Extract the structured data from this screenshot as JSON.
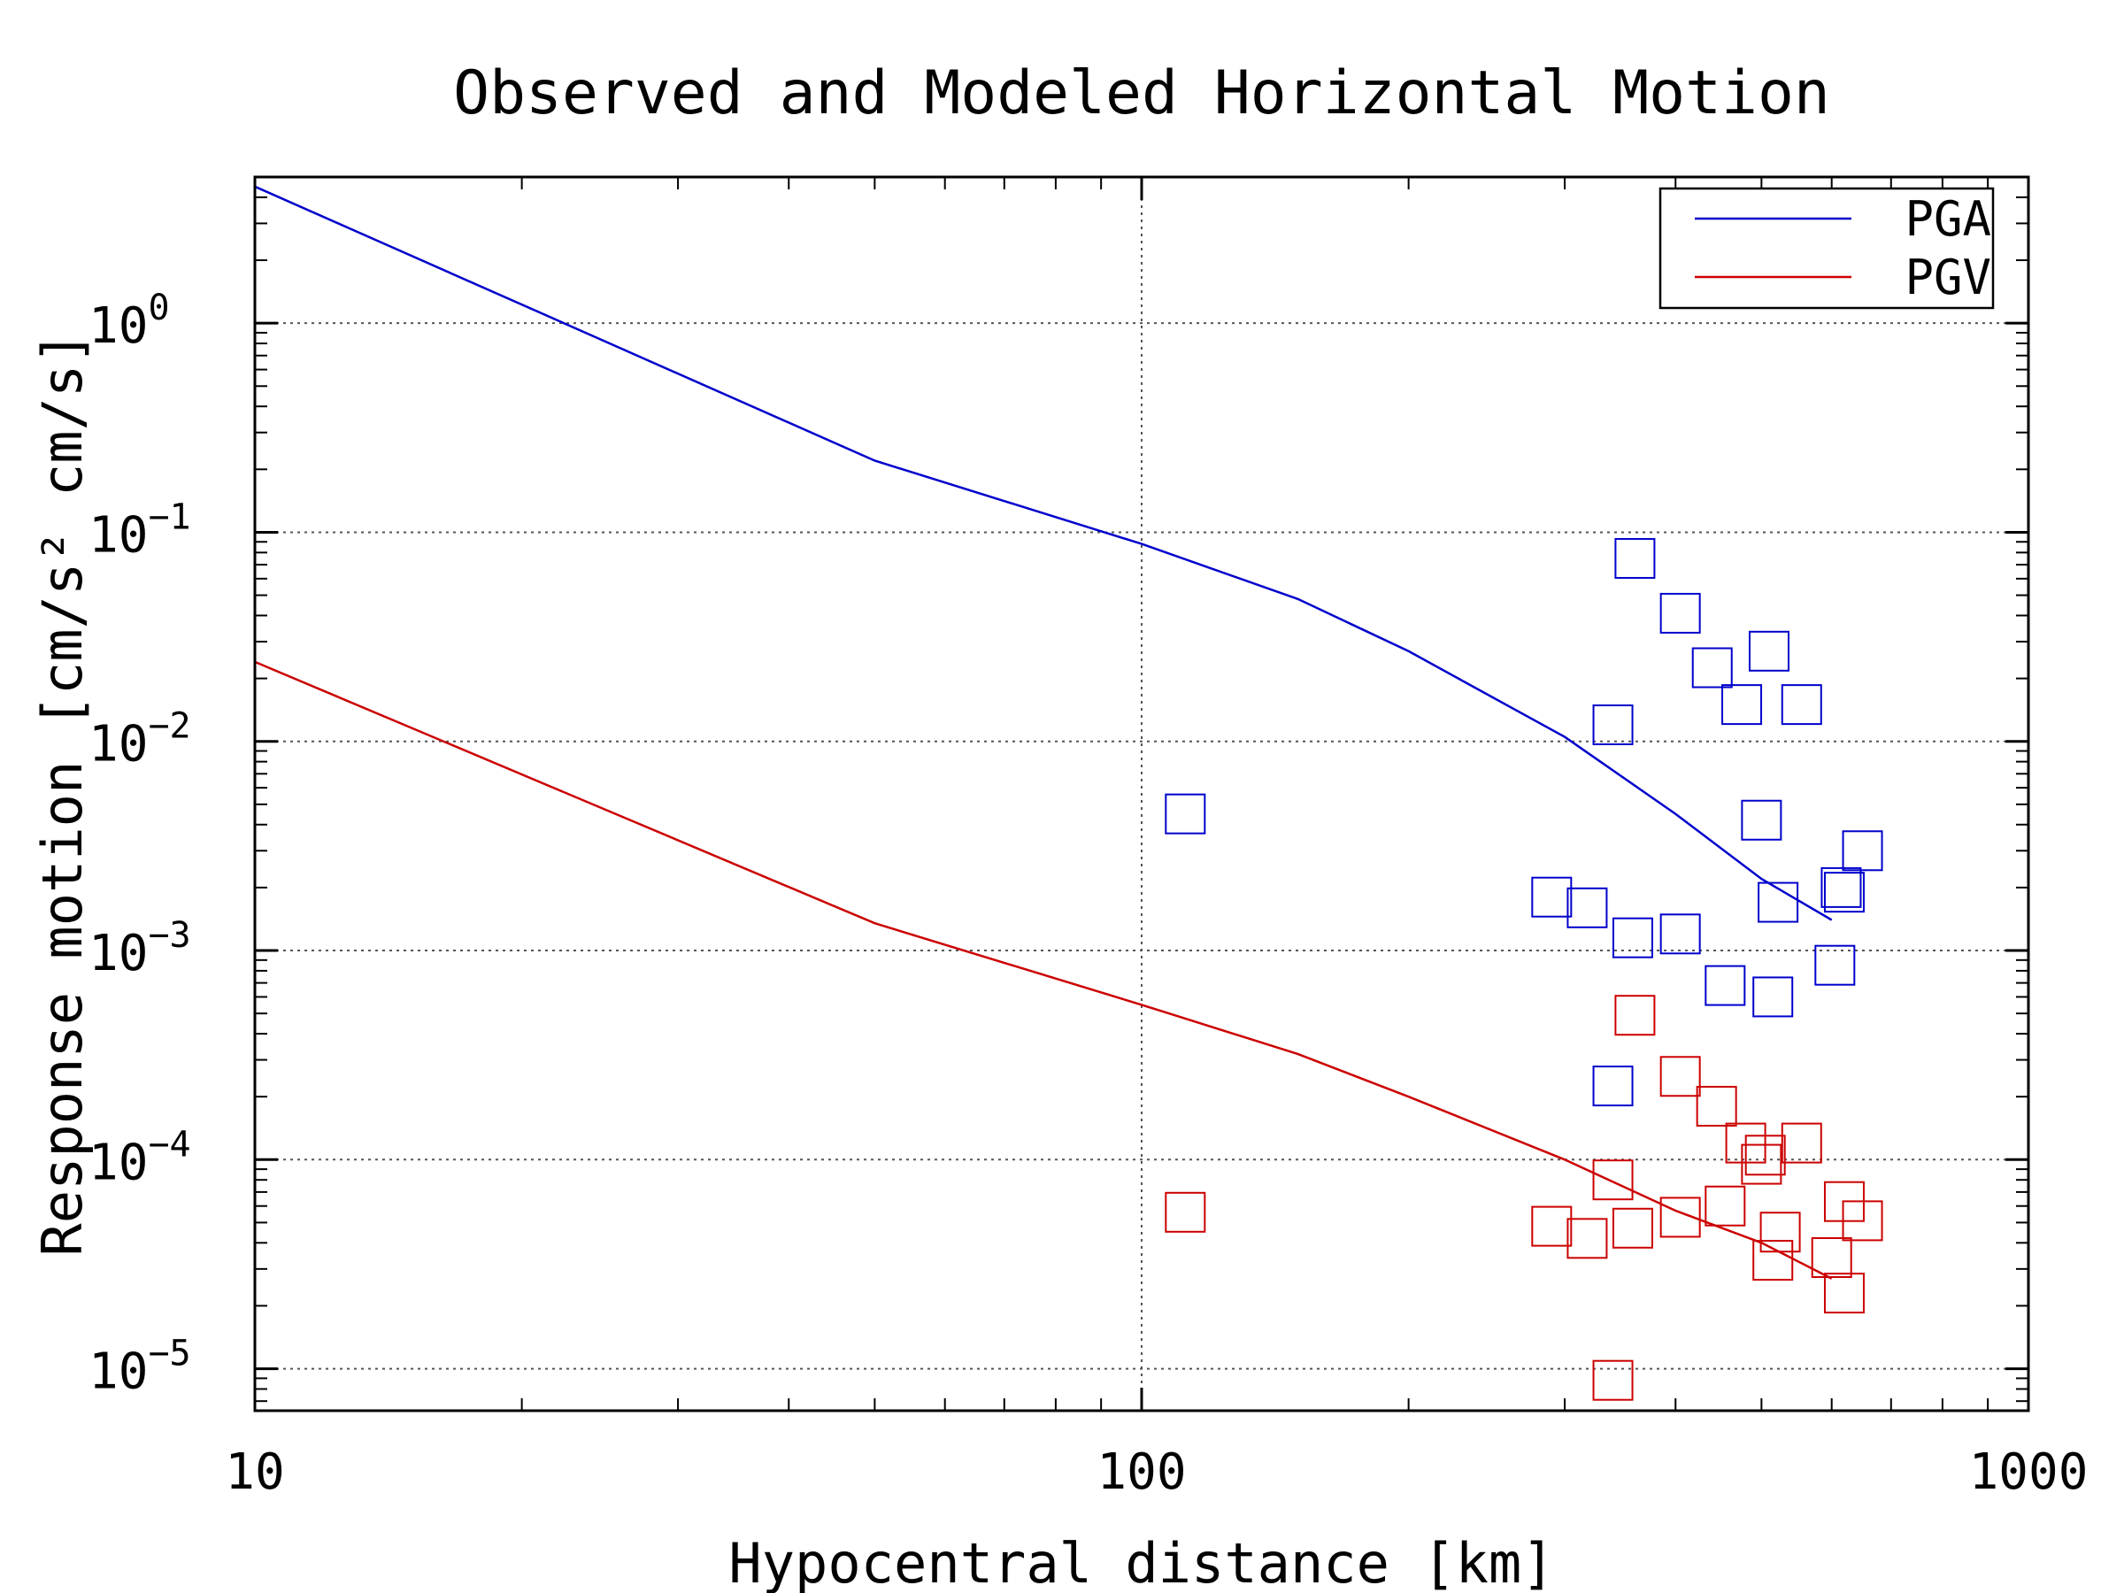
{
  "chart_data": {
    "type": "scatter",
    "title": "Observed and Modeled Horizontal Motion",
    "xlabel": "Hypocentral distance [km]",
    "ylabel": "Response motion  [cm/s²  cm/s]",
    "x_scale": "log",
    "y_scale": "log",
    "xlim": [
      10,
      1000
    ],
    "ylim": [
      6.3e-06,
      5.0
    ],
    "x_ticks": [
      {
        "value": 10,
        "label": "10"
      },
      {
        "value": 100,
        "label": "100"
      },
      {
        "value": 1000,
        "label": "1000"
      }
    ],
    "y_ticks": [
      {
        "value": 1,
        "exp": "0"
      },
      {
        "value": 0.1,
        "exp": "−1"
      },
      {
        "value": 0.01,
        "exp": "−2"
      },
      {
        "value": 0.001,
        "exp": "−3"
      },
      {
        "value": 0.0001,
        "exp": "−4"
      },
      {
        "value": 1e-05,
        "exp": "−5"
      }
    ],
    "tick_base": "10",
    "grid": true,
    "legend_position": "top-right",
    "series": [
      {
        "name": "PGA",
        "color": "#0000cc",
        "model": [
          [
            10,
            4.5
          ],
          [
            50,
            0.22
          ],
          [
            100,
            0.088
          ],
          [
            150,
            0.048
          ],
          [
            200,
            0.027
          ],
          [
            300,
            0.0105
          ],
          [
            400,
            0.0045
          ],
          [
            500,
            0.0022
          ],
          [
            600,
            0.0014
          ]
        ],
        "observed": [
          [
            112,
            0.0045
          ],
          [
            340,
            0.012
          ],
          [
            360,
            0.075
          ],
          [
            405,
            0.041
          ],
          [
            440,
            0.0225
          ],
          [
            475,
            0.015
          ],
          [
            510,
            0.027
          ],
          [
            555,
            0.015
          ],
          [
            500,
            0.0042
          ],
          [
            615,
            0.002
          ],
          [
            620,
            0.0019
          ],
          [
            650,
            0.003
          ],
          [
            290,
            0.0018
          ],
          [
            318,
            0.0016
          ],
          [
            358,
            0.00115
          ],
          [
            405,
            0.0012
          ],
          [
            455,
            0.00068
          ],
          [
            522,
            0.0017
          ],
          [
            515,
            0.0006
          ],
          [
            605,
            0.00085
          ],
          [
            340,
            0.000225
          ]
        ]
      },
      {
        "name": "PGV",
        "color": "#cc0000",
        "model": [
          [
            10,
            0.024
          ],
          [
            50,
            0.00135
          ],
          [
            100,
            0.00055
          ],
          [
            150,
            0.00032
          ],
          [
            200,
            0.0002
          ],
          [
            300,
            0.0001
          ],
          [
            400,
            5.7e-05
          ],
          [
            500,
            4e-05
          ],
          [
            600,
            2.7e-05
          ]
        ],
        "observed": [
          [
            112,
            5.6e-05
          ],
          [
            360,
            0.00049
          ],
          [
            405,
            0.00025
          ],
          [
            445,
            0.00018
          ],
          [
            480,
            0.00012
          ],
          [
            500,
            9.5e-05
          ],
          [
            505,
            0.000105
          ],
          [
            555,
            0.00012
          ],
          [
            340,
            8e-05
          ],
          [
            455,
            6e-05
          ],
          [
            405,
            5.3e-05
          ],
          [
            290,
            4.8e-05
          ],
          [
            318,
            4.2e-05
          ],
          [
            358,
            4.7e-05
          ],
          [
            525,
            4.5e-05
          ],
          [
            515,
            3.3e-05
          ],
          [
            600,
            3.4e-05
          ],
          [
            620,
            6.3e-05
          ],
          [
            650,
            5.1e-05
          ],
          [
            620,
            2.3e-05
          ],
          [
            340,
            8.8e-06
          ]
        ]
      }
    ]
  }
}
